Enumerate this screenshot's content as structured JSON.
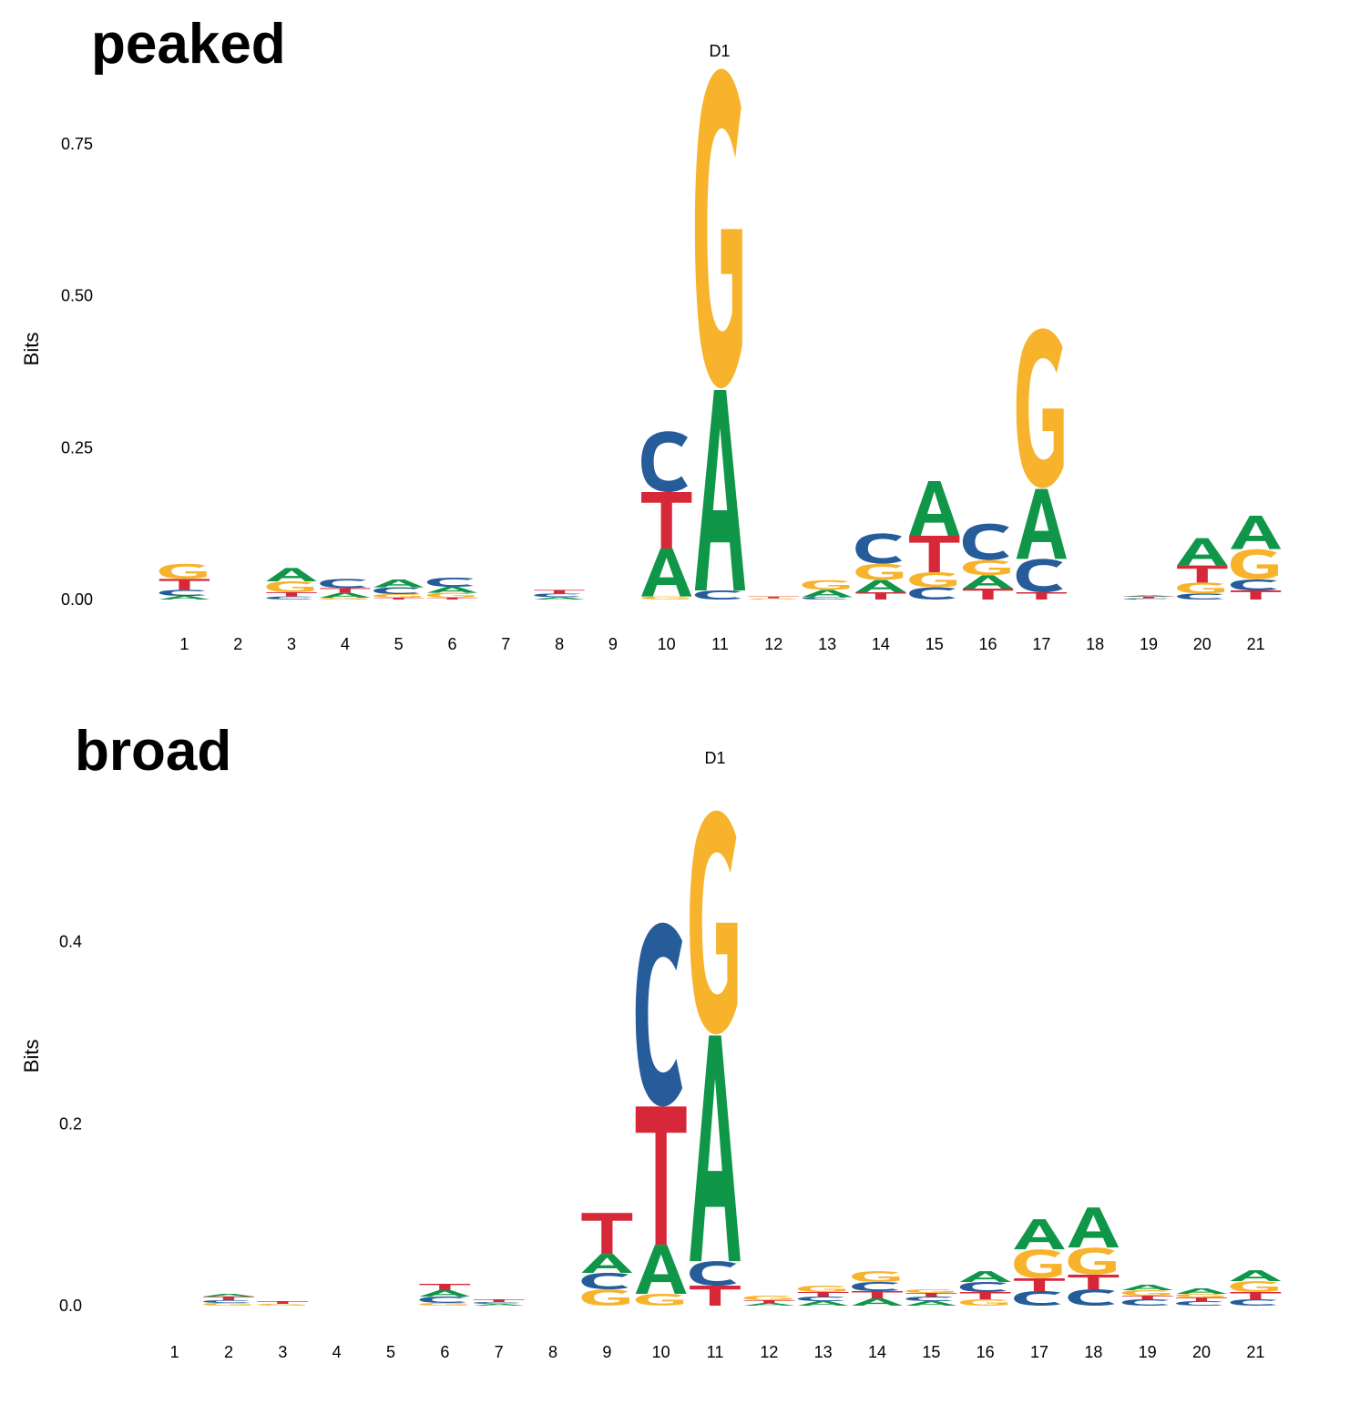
{
  "colors": {
    "A": "#109648",
    "C": "#255C99",
    "G": "#F7B32B",
    "T": "#D62839"
  },
  "chart_data": [
    {
      "type": "sequence-logo",
      "panel_label": "peaked",
      "title": "D1",
      "ylabel": "Bits",
      "ylim": [
        0,
        0.9
      ],
      "yticks": [
        0,
        0.25,
        0.5,
        0.75
      ],
      "ytick_labels": [
        "0.00",
        "0.25",
        "0.50",
        "0.75"
      ],
      "positions": [
        "1",
        "2",
        "3",
        "4",
        "5",
        "6",
        "7",
        "8",
        "9",
        "10",
        "11",
        "12",
        "13",
        "14",
        "15",
        "16",
        "17",
        "18",
        "19",
        "20",
        "21"
      ],
      "stacks": [
        [
          {
            "l": "A",
            "v": 0.006
          },
          {
            "l": "C",
            "v": 0.01
          },
          {
            "l": "T",
            "v": 0.018
          },
          {
            "l": "G",
            "v": 0.025
          }
        ],
        [],
        [
          {
            "l": "C",
            "v": 0.005
          },
          {
            "l": "T",
            "v": 0.007
          },
          {
            "l": "G",
            "v": 0.018
          },
          {
            "l": "A",
            "v": 0.022
          }
        ],
        [
          {
            "l": "G",
            "v": 0.003
          },
          {
            "l": "A",
            "v": 0.008
          },
          {
            "l": "T",
            "v": 0.008
          },
          {
            "l": "C",
            "v": 0.015
          }
        ],
        [
          {
            "l": "T",
            "v": 0.003
          },
          {
            "l": "G",
            "v": 0.006
          },
          {
            "l": "C",
            "v": 0.011
          },
          {
            "l": "A",
            "v": 0.013
          }
        ],
        [
          {
            "l": "T",
            "v": 0.003
          },
          {
            "l": "G",
            "v": 0.008
          },
          {
            "l": "A",
            "v": 0.01
          },
          {
            "l": "C",
            "v": 0.015
          }
        ],
        [],
        [
          {
            "l": "A",
            "v": 0.004
          },
          {
            "l": "C",
            "v": 0.006
          },
          {
            "l": "T",
            "v": 0.006
          }
        ],
        [],
        [
          {
            "l": "G",
            "v": 0.005
          },
          {
            "l": "A",
            "v": 0.079
          },
          {
            "l": "T",
            "v": 0.093
          },
          {
            "l": "C",
            "v": 0.1
          }
        ],
        [
          {
            "l": "C",
            "v": 0.015
          },
          {
            "l": "A",
            "v": 0.33
          },
          {
            "l": "G",
            "v": 0.53
          }
        ],
        [
          {
            "l": "G",
            "v": 0.002
          },
          {
            "l": "T",
            "v": 0.003
          }
        ],
        [
          {
            "l": "C",
            "v": 0.004
          },
          {
            "l": "A",
            "v": 0.012
          },
          {
            "l": "G",
            "v": 0.016
          }
        ],
        [
          {
            "l": "T",
            "v": 0.012
          },
          {
            "l": "A",
            "v": 0.02
          },
          {
            "l": "G",
            "v": 0.027
          },
          {
            "l": "C",
            "v": 0.05
          }
        ],
        [
          {
            "l": "C",
            "v": 0.02
          },
          {
            "l": "G",
            "v": 0.025
          },
          {
            "l": "T",
            "v": 0.06
          },
          {
            "l": "A",
            "v": 0.09
          }
        ],
        [
          {
            "l": "T",
            "v": 0.018
          },
          {
            "l": "A",
            "v": 0.022
          },
          {
            "l": "G",
            "v": 0.025
          },
          {
            "l": "C",
            "v": 0.06
          }
        ],
        [
          {
            "l": "T",
            "v": 0.012
          },
          {
            "l": "C",
            "v": 0.055
          },
          {
            "l": "A",
            "v": 0.115
          },
          {
            "l": "G",
            "v": 0.265
          }
        ],
        [],
        [
          {
            "l": "C",
            "v": 0.002
          },
          {
            "l": "T",
            "v": 0.003
          },
          {
            "l": "A",
            "v": 0.002
          }
        ],
        [
          {
            "l": "C",
            "v": 0.01
          },
          {
            "l": "G",
            "v": 0.018
          },
          {
            "l": "T",
            "v": 0.028
          },
          {
            "l": "A",
            "v": 0.045
          }
        ],
        [
          {
            "l": "T",
            "v": 0.015
          },
          {
            "l": "C",
            "v": 0.018
          },
          {
            "l": "G",
            "v": 0.05
          },
          {
            "l": "A",
            "v": 0.055
          }
        ]
      ]
    },
    {
      "type": "sequence-logo",
      "panel_label": "broad",
      "title": "D1",
      "ylabel": "Bits",
      "ylim": [
        0,
        0.55
      ],
      "yticks": [
        0,
        0.2,
        0.4
      ],
      "ytick_labels": [
        "0.0",
        "0.2",
        "0.4"
      ],
      "positions": [
        "1",
        "2",
        "3",
        "4",
        "5",
        "6",
        "7",
        "8",
        "9",
        "10",
        "11",
        "12",
        "13",
        "14",
        "15",
        "16",
        "17",
        "18",
        "19",
        "20",
        "21"
      ],
      "stacks": [
        [],
        [
          {
            "l": "G",
            "v": 0.003
          },
          {
            "l": "C",
            "v": 0.003
          },
          {
            "l": "T",
            "v": 0.004
          },
          {
            "l": "A",
            "v": 0.003
          }
        ],
        [
          {
            "l": "G",
            "v": 0.002
          },
          {
            "l": "T",
            "v": 0.003
          }
        ],
        [],
        [],
        [
          {
            "l": "G",
            "v": 0.003
          },
          {
            "l": "C",
            "v": 0.007
          },
          {
            "l": "A",
            "v": 0.007
          },
          {
            "l": "T",
            "v": 0.007
          }
        ],
        [
          {
            "l": "A",
            "v": 0.002
          },
          {
            "l": "C",
            "v": 0.002
          },
          {
            "l": "T",
            "v": 0.003
          }
        ],
        [],
        [
          {
            "l": "G",
            "v": 0.018
          },
          {
            "l": "C",
            "v": 0.018
          },
          {
            "l": "A",
            "v": 0.021
          },
          {
            "l": "T",
            "v": 0.045
          }
        ],
        [
          {
            "l": "G",
            "v": 0.013
          },
          {
            "l": "A",
            "v": 0.054
          },
          {
            "l": "T",
            "v": 0.152
          },
          {
            "l": "C",
            "v": 0.202
          }
        ],
        [
          {
            "l": "T",
            "v": 0.022
          },
          {
            "l": "C",
            "v": 0.027
          },
          {
            "l": "A",
            "v": 0.248
          },
          {
            "l": "G",
            "v": 0.248
          }
        ],
        [
          {
            "l": "A",
            "v": 0.003
          },
          {
            "l": "T",
            "v": 0.003
          },
          {
            "l": "G",
            "v": 0.005
          }
        ],
        [
          {
            "l": "A",
            "v": 0.005
          },
          {
            "l": "C",
            "v": 0.005
          },
          {
            "l": "T",
            "v": 0.005
          },
          {
            "l": "G",
            "v": 0.007
          }
        ],
        [
          {
            "l": "A",
            "v": 0.008
          },
          {
            "l": "T",
            "v": 0.008
          },
          {
            "l": "C",
            "v": 0.01
          },
          {
            "l": "G",
            "v": 0.012
          }
        ],
        [
          {
            "l": "A",
            "v": 0.005
          },
          {
            "l": "C",
            "v": 0.005
          },
          {
            "l": "T",
            "v": 0.004
          },
          {
            "l": "G",
            "v": 0.004
          }
        ],
        [
          {
            "l": "G",
            "v": 0.007
          },
          {
            "l": "T",
            "v": 0.008
          },
          {
            "l": "C",
            "v": 0.011
          },
          {
            "l": "A",
            "v": 0.012
          }
        ],
        [
          {
            "l": "C",
            "v": 0.016
          },
          {
            "l": "T",
            "v": 0.014
          },
          {
            "l": "G",
            "v": 0.032
          },
          {
            "l": "A",
            "v": 0.033
          }
        ],
        [
          {
            "l": "C",
            "v": 0.018
          },
          {
            "l": "T",
            "v": 0.016
          },
          {
            "l": "G",
            "v": 0.03
          },
          {
            "l": "A",
            "v": 0.044
          }
        ],
        [
          {
            "l": "C",
            "v": 0.007
          },
          {
            "l": "T",
            "v": 0.004
          },
          {
            "l": "G",
            "v": 0.006
          },
          {
            "l": "A",
            "v": 0.006
          }
        ],
        [
          {
            "l": "C",
            "v": 0.005
          },
          {
            "l": "T",
            "v": 0.004
          },
          {
            "l": "G",
            "v": 0.004
          },
          {
            "l": "A",
            "v": 0.006
          }
        ],
        [
          {
            "l": "C",
            "v": 0.007
          },
          {
            "l": "T",
            "v": 0.008
          },
          {
            "l": "G",
            "v": 0.012
          },
          {
            "l": "A",
            "v": 0.012
          }
        ]
      ]
    }
  ]
}
